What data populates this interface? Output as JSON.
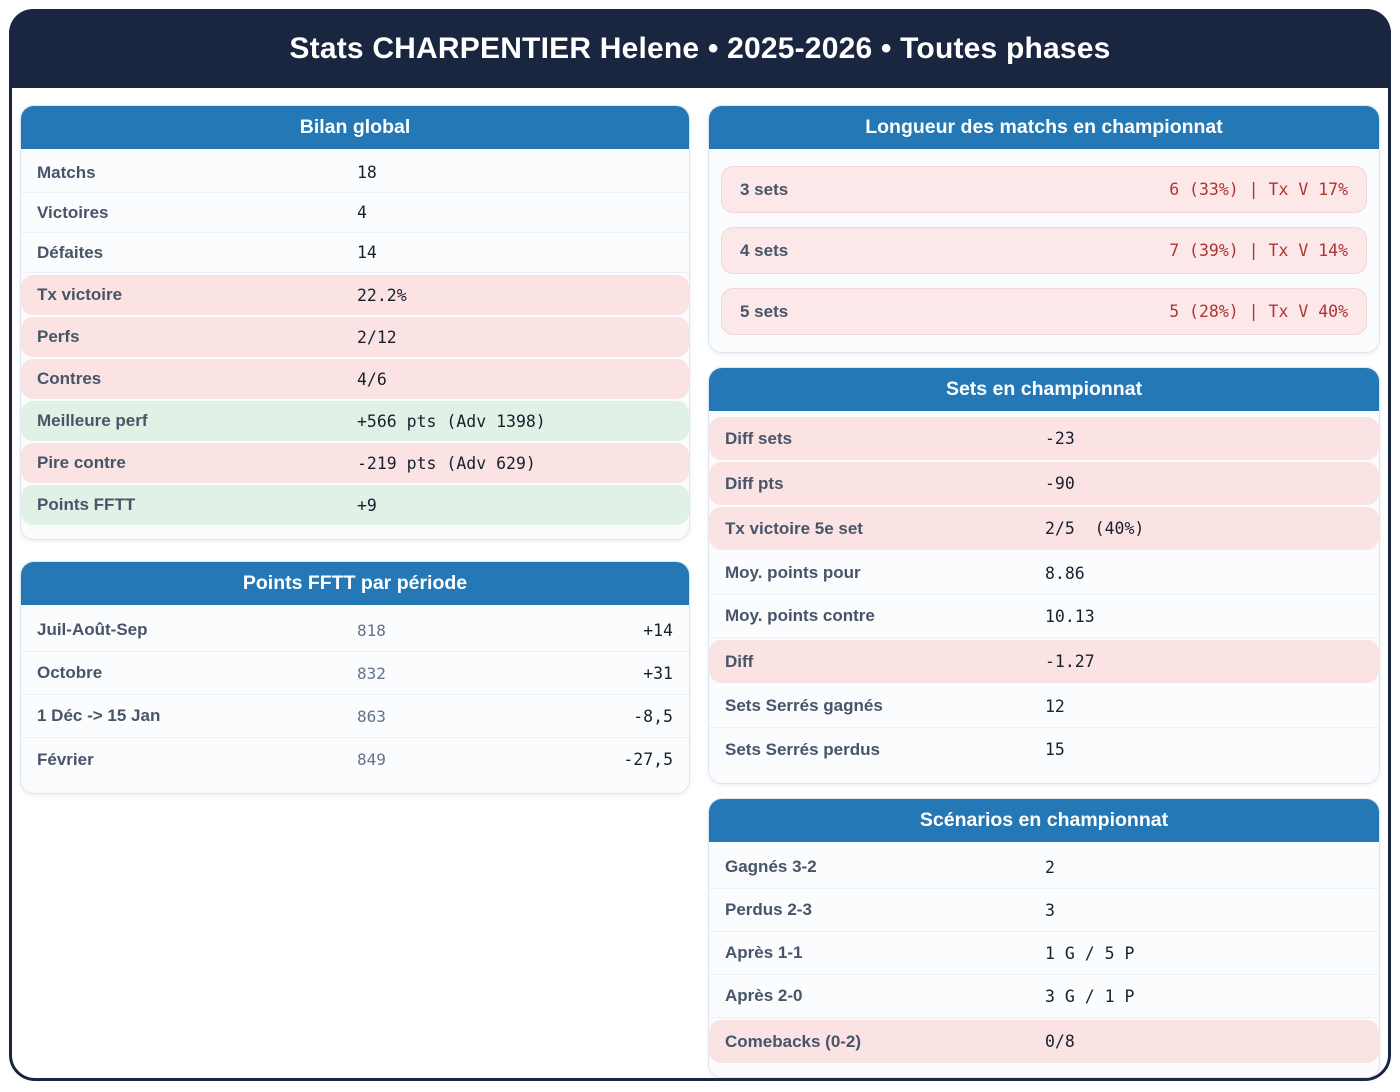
{
  "header": {
    "title": "Stats CHARPENTIER Helene • 2025-2026 • Toutes phases"
  },
  "colors": {
    "navy": "#1a2540",
    "panel_header_blue": "#2478b5",
    "highlight_pink": "#fbe3e3",
    "highlight_green": "#e1f1e6",
    "value_red": "#b03434",
    "label_slate": "#475569"
  },
  "panels": {
    "bilan": {
      "title": "Bilan global",
      "rows": [
        {
          "label": "Matchs",
          "value": "18"
        },
        {
          "label": "Victoires",
          "value": "4"
        },
        {
          "label": "Défaites",
          "value": "14"
        },
        {
          "label": "Tx victoire",
          "value": "22.2%"
        },
        {
          "label": "Perfs",
          "value": "2/12"
        },
        {
          "label": "Contres",
          "value": "4/6"
        },
        {
          "label": "Meilleure perf",
          "value": "+566 pts (Adv 1398)"
        },
        {
          "label": "Pire contre",
          "value": "-219 pts (Adv 629)"
        },
        {
          "label": "Points FFTT",
          "value": "+9"
        }
      ]
    },
    "points_periode": {
      "title": "Points FFTT par période",
      "rows": [
        {
          "label": "Juil-Août-Sep",
          "points": "818",
          "delta": "+14"
        },
        {
          "label": "Octobre",
          "points": "832",
          "delta": "+31"
        },
        {
          "label": "1 Déc -> 15 Jan",
          "points": "863",
          "delta": "-8,5"
        },
        {
          "label": "Février",
          "points": "849",
          "delta": "-27,5"
        }
      ]
    },
    "longueur": {
      "title": "Longueur des matchs en championnat",
      "rows": [
        {
          "label": "3 sets",
          "value": "6 (33%) | Tx V 17%"
        },
        {
          "label": "4 sets",
          "value": "7 (39%) | Tx V 14%"
        },
        {
          "label": "5 sets",
          "value": "5 (28%) | Tx V 40%"
        }
      ]
    },
    "sets": {
      "title": "Sets en championnat",
      "rows": [
        {
          "label": "Diff sets",
          "value": "-23"
        },
        {
          "label": "Diff pts",
          "value": "-90"
        },
        {
          "label": "Tx victoire 5e set",
          "value": "2/5  (40%)"
        },
        {
          "label": "Moy. points pour",
          "value": "8.86"
        },
        {
          "label": "Moy. points contre",
          "value": "10.13"
        },
        {
          "label": "Diff",
          "value": "-1.27"
        },
        {
          "label": "Sets Serrés gagnés",
          "value": "12"
        },
        {
          "label": "Sets Serrés perdus",
          "value": "15"
        }
      ]
    },
    "scenarios": {
      "title": "Scénarios en championnat",
      "rows": [
        {
          "label": "Gagnés 3-2",
          "value": "2"
        },
        {
          "label": "Perdus 2-3",
          "value": "3"
        },
        {
          "label": "Après 1-1",
          "value": "1 G / 5 P"
        },
        {
          "label": "Après 2-0",
          "value": "3 G / 1 P"
        },
        {
          "label": "Comebacks (0-2)",
          "value": "0/8"
        }
      ]
    }
  }
}
